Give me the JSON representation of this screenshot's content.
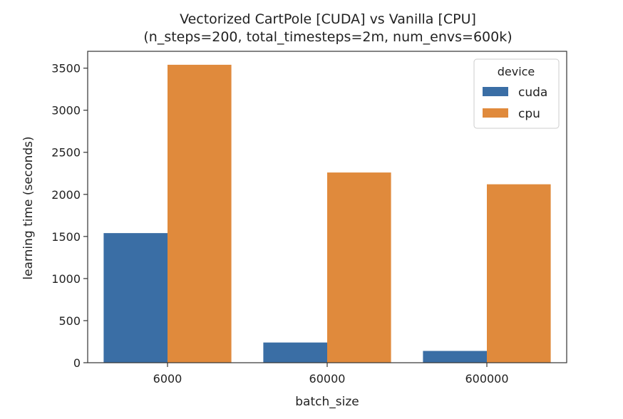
{
  "chart_data": {
    "type": "bar",
    "title": "Vectorized CartPole [CUDA] vs Vanilla [CPU]",
    "subtitle": "(n_steps=200, total_timesteps=2m, num_envs=600k)",
    "xlabel": "batch_size",
    "ylabel": "learning time (seconds)",
    "categories": [
      "6000",
      "60000",
      "600000"
    ],
    "series": [
      {
        "name": "cuda",
        "color": "#3a6ea5",
        "values": [
          1540,
          240,
          140
        ]
      },
      {
        "name": "cpu",
        "color": "#e08a3c",
        "values": [
          3540,
          2260,
          2120
        ]
      }
    ],
    "ylim": [
      0,
      3700
    ],
    "yticks": [
      0,
      500,
      1000,
      1500,
      2000,
      2500,
      3000,
      3500
    ],
    "legend": {
      "title": "device",
      "placement": "top-right"
    },
    "grid": false
  }
}
